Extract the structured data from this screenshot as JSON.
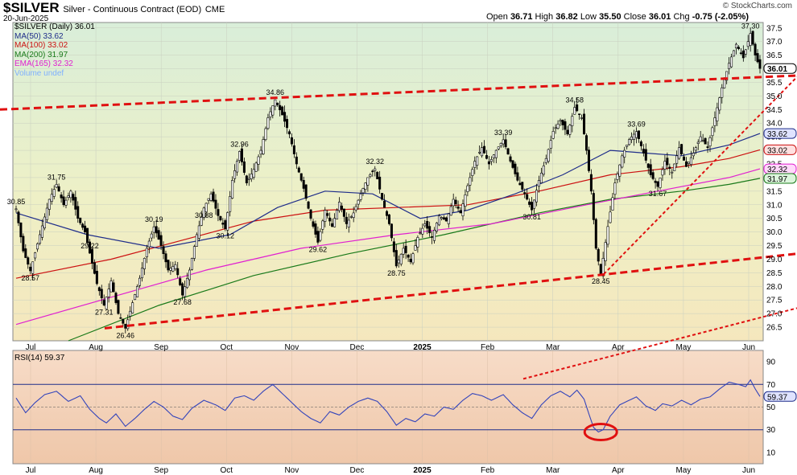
{
  "header": {
    "symbol": "$SILVER",
    "description": "Silver - Continuous Contract (EOD)",
    "exchange": "CME",
    "date": "20-Jun-2025",
    "credit": "© StockCharts.com",
    "open_label": "Open",
    "open": "36.71",
    "high_label": "High",
    "high": "36.82",
    "low_label": "Low",
    "low": "35.50",
    "close_label": "Close",
    "close": "36.01",
    "chg_label": "Chg",
    "chg": "-0.75 (-2.05%)"
  },
  "legend": [
    {
      "label": "$SILVER (Daily) 36.01",
      "color": "#000000"
    },
    {
      "label": "MA(50) 33.62",
      "color": "#1f2d8a"
    },
    {
      "label": "MA(100) 33.02",
      "color": "#cc1111"
    },
    {
      "label": "MA(200) 31.97",
      "color": "#1a7a1a"
    },
    {
      "label": "EMA(165) 32.32",
      "color": "#e020d0"
    },
    {
      "label": "Volume undef",
      "color": "#7fb0ff"
    }
  ],
  "rsi_legend": "RSI(14) 59.37",
  "chart_data": [
    {
      "type": "candlestick",
      "x_labels": [
        "Jul",
        "Aug",
        "Sep",
        "Oct",
        "Nov",
        "Dec",
        "2025",
        "Feb",
        "Mar",
        "Apr",
        "May",
        "Jun"
      ],
      "y_ticks": [
        26.5,
        27.0,
        27.5,
        28.0,
        28.5,
        29.0,
        29.5,
        30.0,
        30.5,
        31.0,
        31.5,
        32.0,
        32.5,
        33.0,
        33.5,
        34.0,
        34.5,
        35.0,
        35.5,
        36.0,
        36.5,
        37.0,
        37.5
      ],
      "ylim": [
        26.0,
        37.7
      ],
      "price_path": [
        [
          0,
          30.85
        ],
        [
          3,
          29.3
        ],
        [
          6,
          28.57
        ],
        [
          10,
          29.9
        ],
        [
          14,
          31.2
        ],
        [
          17,
          31.75
        ],
        [
          20,
          31.0
        ],
        [
          23,
          31.5
        ],
        [
          26,
          30.5
        ],
        [
          29,
          30.0
        ],
        [
          31,
          29.22
        ],
        [
          34,
          28.1
        ],
        [
          37,
          27.31
        ],
        [
          40,
          28.2
        ],
        [
          43,
          27.0
        ],
        [
          46,
          26.46
        ],
        [
          49,
          27.4
        ],
        [
          52,
          28.3
        ],
        [
          55,
          29.4
        ],
        [
          58,
          30.19
        ],
        [
          61,
          29.5
        ],
        [
          64,
          28.6
        ],
        [
          67,
          28.8
        ],
        [
          70,
          27.68
        ],
        [
          73,
          28.6
        ],
        [
          76,
          29.9
        ],
        [
          79,
          30.88
        ],
        [
          82,
          31.4
        ],
        [
          85,
          30.6
        ],
        [
          88,
          30.12
        ],
        [
          91,
          31.9
        ],
        [
          94,
          32.96
        ],
        [
          97,
          31.8
        ],
        [
          100,
          32.3
        ],
        [
          103,
          33.0
        ],
        [
          106,
          34.2
        ],
        [
          109,
          34.86
        ],
        [
          112,
          34.3
        ],
        [
          115,
          33.6
        ],
        [
          118,
          32.5
        ],
        [
          121,
          31.6
        ],
        [
          124,
          30.5
        ],
        [
          127,
          29.62
        ],
        [
          130,
          30.8
        ],
        [
          133,
          30.2
        ],
        [
          136,
          31.1
        ],
        [
          139,
          30.3
        ],
        [
          142,
          30.7
        ],
        [
          145,
          31.4
        ],
        [
          148,
          32.0
        ],
        [
          151,
          32.32
        ],
        [
          154,
          31.2
        ],
        [
          157,
          30.3
        ],
        [
          160,
          28.75
        ],
        [
          163,
          29.4
        ],
        [
          166,
          28.9
        ],
        [
          169,
          29.8
        ],
        [
          172,
          30.3
        ],
        [
          175,
          29.8
        ],
        [
          178,
          30.6
        ],
        [
          181,
          30.4
        ],
        [
          184,
          31.2
        ],
        [
          187,
          30.7
        ],
        [
          190,
          31.7
        ],
        [
          193,
          32.6
        ],
        [
          196,
          33.1
        ],
        [
          199,
          32.5
        ],
        [
          202,
          33.0
        ],
        [
          205,
          33.39
        ],
        [
          208,
          32.6
        ],
        [
          211,
          31.9
        ],
        [
          214,
          31.4
        ],
        [
          217,
          30.81
        ],
        [
          220,
          31.9
        ],
        [
          223,
          32.7
        ],
        [
          226,
          33.7
        ],
        [
          229,
          34.1
        ],
        [
          232,
          33.6
        ],
        [
          235,
          34.58
        ],
        [
          238,
          34.2
        ],
        [
          240,
          33.0
        ],
        [
          242,
          31.5
        ],
        [
          244,
          29.4
        ],
        [
          246,
          28.45
        ],
        [
          249,
          30.2
        ],
        [
          252,
          31.8
        ],
        [
          255,
          32.8
        ],
        [
          258,
          33.4
        ],
        [
          261,
          33.69
        ],
        [
          264,
          32.9
        ],
        [
          267,
          32.1
        ],
        [
          270,
          31.67
        ],
        [
          273,
          32.6
        ],
        [
          276,
          32.2
        ],
        [
          279,
          33.1
        ],
        [
          282,
          32.4
        ],
        [
          285,
          32.9
        ],
        [
          288,
          33.5
        ],
        [
          291,
          33.1
        ],
        [
          294,
          34.2
        ],
        [
          297,
          35.3
        ],
        [
          300,
          36.2
        ],
        [
          303,
          36.9
        ],
        [
          306,
          36.4
        ],
        [
          309,
          37.3
        ],
        [
          311,
          36.5
        ],
        [
          313,
          36.01
        ]
      ],
      "ma50_path": [
        [
          0,
          30.7
        ],
        [
          30,
          29.9
        ],
        [
          60,
          29.4
        ],
        [
          90,
          29.9
        ],
        [
          110,
          30.9
        ],
        [
          130,
          31.5
        ],
        [
          150,
          31.4
        ],
        [
          170,
          30.5
        ],
        [
          190,
          30.8
        ],
        [
          210,
          31.4
        ],
        [
          230,
          32.1
        ],
        [
          250,
          33.0
        ],
        [
          265,
          32.9
        ],
        [
          280,
          32.8
        ],
        [
          300,
          33.2
        ],
        [
          313,
          33.62
        ]
      ],
      "ma100_path": [
        [
          0,
          28.3
        ],
        [
          40,
          29.0
        ],
        [
          70,
          29.7
        ],
        [
          100,
          30.4
        ],
        [
          130,
          30.8
        ],
        [
          160,
          30.9
        ],
        [
          190,
          31.0
        ],
        [
          220,
          31.5
        ],
        [
          250,
          32.1
        ],
        [
          280,
          32.4
        ],
        [
          300,
          32.7
        ],
        [
          313,
          33.02
        ]
      ],
      "ma200_path": [
        [
          22,
          26.0
        ],
        [
          60,
          27.3
        ],
        [
          100,
          28.4
        ],
        [
          140,
          29.2
        ],
        [
          180,
          29.9
        ],
        [
          220,
          30.7
        ],
        [
          250,
          31.2
        ],
        [
          280,
          31.5
        ],
        [
          300,
          31.75
        ],
        [
          313,
          31.97
        ]
      ],
      "ema165_path": [
        [
          0,
          26.6
        ],
        [
          40,
          27.6
        ],
        [
          80,
          28.6
        ],
        [
          120,
          29.4
        ],
        [
          160,
          29.9
        ],
        [
          200,
          30.3
        ],
        [
          240,
          31.0
        ],
        [
          270,
          31.5
        ],
        [
          300,
          32.0
        ],
        [
          313,
          32.32
        ]
      ],
      "price_labels": [
        {
          "i": 0,
          "v": 30.85,
          "text": "30.85",
          "pos": "above"
        },
        {
          "i": 6,
          "v": 28.57,
          "text": "28.57",
          "pos": "below"
        },
        {
          "i": 17,
          "v": 31.75,
          "text": "31.75",
          "pos": "above"
        },
        {
          "i": 31,
          "v": 29.22,
          "text": "29.22",
          "pos": "above"
        },
        {
          "i": 37,
          "v": 27.31,
          "text": "27.31",
          "pos": "below"
        },
        {
          "i": 46,
          "v": 26.46,
          "text": "26.46",
          "pos": "below"
        },
        {
          "i": 58,
          "v": 30.19,
          "text": "30.19",
          "pos": "above"
        },
        {
          "i": 70,
          "v": 27.68,
          "text": "27.68",
          "pos": "below"
        },
        {
          "i": 79,
          "v": 30.88,
          "text": "30.88",
          "pos": "below"
        },
        {
          "i": 88,
          "v": 30.12,
          "text": "30.12",
          "pos": "below"
        },
        {
          "i": 94,
          "v": 32.96,
          "text": "32.96",
          "pos": "above"
        },
        {
          "i": 109,
          "v": 34.86,
          "text": "34.86",
          "pos": "above"
        },
        {
          "i": 127,
          "v": 29.62,
          "text": "29.62",
          "pos": "below"
        },
        {
          "i": 151,
          "v": 32.32,
          "text": "32.32",
          "pos": "above"
        },
        {
          "i": 160,
          "v": 28.75,
          "text": "28.75",
          "pos": "below"
        },
        {
          "i": 205,
          "v": 33.39,
          "text": "33.39",
          "pos": "above"
        },
        {
          "i": 217,
          "v": 30.81,
          "text": "30.81",
          "pos": "below"
        },
        {
          "i": 235,
          "v": 34.58,
          "text": "34.58",
          "pos": "above"
        },
        {
          "i": 246,
          "v": 28.45,
          "text": "28.45",
          "pos": "below"
        },
        {
          "i": 261,
          "v": 33.69,
          "text": "33.69",
          "pos": "above"
        },
        {
          "i": 270,
          "v": 31.67,
          "text": "31.67",
          "pos": "below"
        },
        {
          "i": 309,
          "v": 37.3,
          "text": "37.30",
          "pos": "above"
        }
      ],
      "axis_tags": [
        {
          "v": 36.01,
          "text": "36.01",
          "fill": "#ffffff",
          "stroke": "#000000",
          "bold": true
        },
        {
          "v": 33.62,
          "text": "33.62",
          "fill": "#dfe3ff",
          "stroke": "#1f2d8a"
        },
        {
          "v": 33.02,
          "text": "33.02",
          "fill": "#ffe0e0",
          "stroke": "#cc1111"
        },
        {
          "v": 32.32,
          "text": "32.32",
          "fill": "#ffd9fa",
          "stroke": "#e020d0"
        },
        {
          "v": 31.97,
          "text": "31.97",
          "fill": "#dcf5dc",
          "stroke": "#1a7a1a"
        }
      ],
      "trendlines": [
        {
          "x1": 0,
          "y1": 34.5,
          "x2": 990,
          "y2": 35.75,
          "width": 3
        },
        {
          "x1": 130,
          "y1": 26.46,
          "x2": 990,
          "y2": 29.2,
          "width": 3
        },
        {
          "x1": 750,
          "y1": 28.45,
          "x2": 990,
          "y2": 35.7,
          "width": 2
        },
        {
          "x1": 650,
          "y1": 24.6,
          "x2": 990,
          "y2": 27.2,
          "width": 2
        }
      ]
    },
    {
      "type": "line",
      "title": "RSI(14) 59.37",
      "y_ticks": [
        10,
        30,
        50,
        70,
        90
      ],
      "ylim": [
        0,
        100
      ],
      "lines": [
        30,
        50,
        70
      ],
      "value": "59.37",
      "rsi_path": [
        [
          0,
          58
        ],
        [
          4,
          45
        ],
        [
          8,
          54
        ],
        [
          12,
          61
        ],
        [
          17,
          64
        ],
        [
          22,
          55
        ],
        [
          27,
          60
        ],
        [
          31,
          48
        ],
        [
          35,
          40
        ],
        [
          38,
          36
        ],
        [
          42,
          44
        ],
        [
          46,
          33
        ],
        [
          50,
          40
        ],
        [
          54,
          48
        ],
        [
          58,
          55
        ],
        [
          62,
          50
        ],
        [
          66,
          42
        ],
        [
          70,
          39
        ],
        [
          74,
          49
        ],
        [
          79,
          56
        ],
        [
          84,
          52
        ],
        [
          88,
          47
        ],
        [
          92,
          58
        ],
        [
          96,
          60
        ],
        [
          100,
          56
        ],
        [
          104,
          64
        ],
        [
          108,
          70
        ],
        [
          112,
          62
        ],
        [
          116,
          54
        ],
        [
          120,
          46
        ],
        [
          124,
          40
        ],
        [
          128,
          36
        ],
        [
          132,
          46
        ],
        [
          136,
          43
        ],
        [
          140,
          50
        ],
        [
          144,
          55
        ],
        [
          148,
          58
        ],
        [
          152,
          55
        ],
        [
          156,
          46
        ],
        [
          160,
          34
        ],
        [
          164,
          40
        ],
        [
          168,
          37
        ],
        [
          172,
          44
        ],
        [
          176,
          42
        ],
        [
          180,
          50
        ],
        [
          184,
          48
        ],
        [
          188,
          56
        ],
        [
          192,
          62
        ],
        [
          196,
          60
        ],
        [
          200,
          56
        ],
        [
          205,
          61
        ],
        [
          209,
          52
        ],
        [
          213,
          45
        ],
        [
          217,
          40
        ],
        [
          221,
          52
        ],
        [
          225,
          60
        ],
        [
          229,
          64
        ],
        [
          233,
          59
        ],
        [
          236,
          65
        ],
        [
          239,
          57
        ],
        [
          241,
          44
        ],
        [
          243,
          32
        ],
        [
          245,
          28
        ],
        [
          247,
          30
        ],
        [
          250,
          42
        ],
        [
          254,
          52
        ],
        [
          258,
          56
        ],
        [
          261,
          59
        ],
        [
          265,
          51
        ],
        [
          269,
          47
        ],
        [
          272,
          53
        ],
        [
          276,
          51
        ],
        [
          280,
          56
        ],
        [
          284,
          52
        ],
        [
          288,
          57
        ],
        [
          292,
          59
        ],
        [
          296,
          66
        ],
        [
          300,
          72
        ],
        [
          304,
          70
        ],
        [
          307,
          68
        ],
        [
          309,
          74
        ],
        [
          311,
          66
        ],
        [
          313,
          59.37
        ]
      ],
      "highlight": {
        "i": 246,
        "v": 28
      }
    }
  ]
}
